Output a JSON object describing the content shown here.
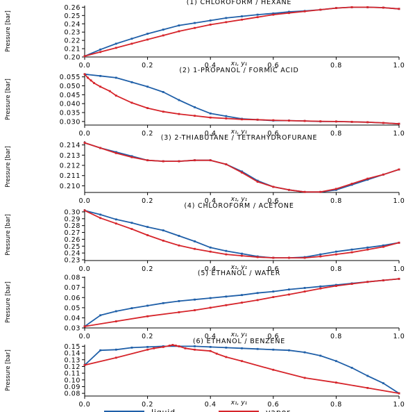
{
  "figure": {
    "legend": {
      "liquid_label": "liquid",
      "vapor_label": "vapor",
      "placement": "bottom-center"
    }
  },
  "colors": {
    "liquid": "#1f5fa8",
    "vapor": "#d6242a"
  },
  "chart_data": [
    {
      "type": "line",
      "title": "(1) CHLOROFORM / HEXANE",
      "xlabel": "x₁, y₁",
      "ylabel": "Pressure [bar]",
      "xlim": [
        0,
        1
      ],
      "ylim": [
        0.2,
        0.262
      ],
      "xticks": [
        "0.0",
        "0.2",
        "0.4",
        "0.6",
        "0.8",
        "1.0"
      ],
      "yticks": [
        0.2,
        0.21,
        0.22,
        0.23,
        0.24,
        0.25,
        0.26
      ],
      "ytick_labels": [
        "0.20",
        "0.21",
        "0.22",
        "0.23",
        "0.24",
        "0.25",
        "0.26"
      ],
      "series": [
        {
          "name": "liquid",
          "x": [
            0,
            0.05,
            0.1,
            0.15,
            0.2,
            0.25,
            0.3,
            0.35,
            0.4,
            0.45,
            0.5,
            0.55,
            0.6,
            0.65,
            0.7,
            0.75,
            0.8,
            0.85,
            0.9,
            0.95,
            1.0
          ],
          "y": [
            0.201,
            0.209,
            0.216,
            0.222,
            0.228,
            0.233,
            0.238,
            0.241,
            0.244,
            0.247,
            0.249,
            0.251,
            0.2525,
            0.2545,
            0.2555,
            0.257,
            0.259,
            0.26,
            0.26,
            0.2595,
            0.258
          ]
        },
        {
          "name": "vapor",
          "x": [
            0,
            0.05,
            0.1,
            0.15,
            0.2,
            0.25,
            0.3,
            0.35,
            0.4,
            0.45,
            0.5,
            0.55,
            0.6,
            0.65,
            0.7,
            0.75,
            0.8,
            0.85,
            0.9,
            0.95,
            1.0
          ],
          "y": [
            0.201,
            0.206,
            0.211,
            0.216,
            0.221,
            0.226,
            0.231,
            0.235,
            0.239,
            0.242,
            0.245,
            0.248,
            0.251,
            0.253,
            0.255,
            0.257,
            0.259,
            0.26,
            0.26,
            0.2595,
            0.258
          ]
        }
      ]
    },
    {
      "type": "line",
      "title": "(2) 1-PROPANOL / FORMIC ACID",
      "xlabel": "x₁, y₁",
      "ylabel": "Pressure [bar]",
      "xlim": [
        0,
        1
      ],
      "ylim": [
        0.028,
        0.0568
      ],
      "xticks": [
        "0.0",
        "0.2",
        "0.4",
        "0.6",
        "0.8",
        "1.0"
      ],
      "yticks": [
        0.03,
        0.035,
        0.04,
        0.045,
        0.05,
        0.055
      ],
      "ytick_labels": [
        "0.030",
        "0.035",
        "0.040",
        "0.045",
        "0.050",
        "0.055"
      ],
      "series": [
        {
          "name": "liquid",
          "x": [
            0,
            0.05,
            0.1,
            0.15,
            0.2,
            0.25,
            0.3,
            0.35,
            0.4,
            0.45,
            0.5,
            0.55,
            0.6,
            0.65,
            0.7,
            0.75,
            0.8,
            0.85,
            0.9,
            0.95,
            1.0
          ],
          "y": [
            0.0565,
            0.0555,
            0.0545,
            0.052,
            0.0495,
            0.0465,
            0.042,
            0.038,
            0.0345,
            0.033,
            0.0315,
            0.031,
            0.0305,
            0.0305,
            0.0303,
            0.03,
            0.03,
            0.0298,
            0.0296,
            0.0292,
            0.0287
          ]
        },
        {
          "name": "vapor",
          "x": [
            0,
            0.01,
            0.02,
            0.03,
            0.05,
            0.08,
            0.1,
            0.15,
            0.2,
            0.25,
            0.3,
            0.35,
            0.4,
            0.45,
            0.5,
            0.55,
            0.6,
            0.65,
            0.7,
            0.75,
            0.8,
            0.85,
            0.9,
            0.95,
            1.0
          ],
          "y": [
            0.0565,
            0.0545,
            0.053,
            0.0515,
            0.0495,
            0.047,
            0.0445,
            0.0405,
            0.0375,
            0.0355,
            0.0342,
            0.0332,
            0.0322,
            0.0317,
            0.0312,
            0.031,
            0.0307,
            0.0305,
            0.0303,
            0.0301,
            0.03,
            0.0298,
            0.0296,
            0.0292,
            0.0287
          ]
        }
      ]
    },
    {
      "type": "line",
      "title": "(3) 2-THIABUTANE / TETRAHYDROFURANE",
      "xlabel": "x₁, y₁",
      "ylabel": "Pressure [bar]",
      "xlim": [
        0,
        1
      ],
      "ylim": [
        0.20935,
        0.21438
      ],
      "xticks": [
        "0.0",
        "0.2",
        "0.4",
        "0.6",
        "0.8",
        "1.0"
      ],
      "yticks": [
        0.21,
        0.211,
        0.212,
        0.213,
        0.214
      ],
      "ytick_labels": [
        "0.210",
        "0.211",
        "0.212",
        "0.213",
        "0.214"
      ],
      "series": [
        {
          "name": "liquid",
          "x": [
            0,
            0.05,
            0.1,
            0.15,
            0.2,
            0.25,
            0.3,
            0.35,
            0.4,
            0.45,
            0.5,
            0.55,
            0.6,
            0.65,
            0.7,
            0.75,
            0.8,
            0.85,
            0.9,
            0.95,
            1.0
          ],
          "y": [
            0.2142,
            0.2137,
            0.2133,
            0.2129,
            0.2125,
            0.2124,
            0.2124,
            0.2125,
            0.2125,
            0.2121,
            0.2114,
            0.2105,
            0.2099,
            0.2096,
            0.2094,
            0.2094,
            0.2096,
            0.2101,
            0.2106,
            0.2111,
            0.2116
          ]
        },
        {
          "name": "vapor",
          "x": [
            0,
            0.05,
            0.1,
            0.15,
            0.2,
            0.25,
            0.3,
            0.35,
            0.4,
            0.45,
            0.5,
            0.55,
            0.6,
            0.65,
            0.7,
            0.75,
            0.8,
            0.85,
            0.9,
            0.95,
            1.0
          ],
          "y": [
            0.2142,
            0.2137,
            0.2132,
            0.2128,
            0.2125,
            0.2124,
            0.2124,
            0.2125,
            0.2125,
            0.2121,
            0.2113,
            0.2104,
            0.2099,
            0.2096,
            0.2094,
            0.2094,
            0.2097,
            0.2102,
            0.2107,
            0.2111,
            0.2116
          ]
        }
      ]
    },
    {
      "type": "line",
      "title": "(4) CHLOROFORM / ACETONE",
      "xlabel": "x₁, y₁",
      "ylabel": "Pressure [bar]",
      "xlim": [
        0,
        1
      ],
      "ylim": [
        0.229,
        0.304
      ],
      "xticks": [
        "0.0",
        "0.2",
        "0.4",
        "0.6",
        "0.8",
        "1.0"
      ],
      "yticks": [
        0.23,
        0.24,
        0.25,
        0.26,
        0.27,
        0.28,
        0.29,
        0.3
      ],
      "ytick_labels": [
        "0.23",
        "0.24",
        "0.25",
        "0.26",
        "0.27",
        "0.28",
        "0.29",
        "0.30"
      ],
      "series": [
        {
          "name": "liquid",
          "x": [
            0,
            0.05,
            0.1,
            0.15,
            0.2,
            0.25,
            0.3,
            0.35,
            0.4,
            0.45,
            0.5,
            0.55,
            0.6,
            0.65,
            0.7,
            0.75,
            0.8,
            0.85,
            0.9,
            0.95,
            1.0
          ],
          "y": [
            0.302,
            0.296,
            0.289,
            0.284,
            0.278,
            0.273,
            0.265,
            0.257,
            0.248,
            0.243,
            0.239,
            0.235,
            0.233,
            0.233,
            0.234,
            0.238,
            0.242,
            0.245,
            0.248,
            0.251,
            0.255
          ]
        },
        {
          "name": "vapor",
          "x": [
            0,
            0.05,
            0.1,
            0.15,
            0.2,
            0.25,
            0.3,
            0.35,
            0.4,
            0.45,
            0.5,
            0.55,
            0.6,
            0.65,
            0.7,
            0.75,
            0.8,
            0.85,
            0.9,
            0.95,
            1.0
          ],
          "y": [
            0.302,
            0.291,
            0.283,
            0.275,
            0.266,
            0.258,
            0.251,
            0.246,
            0.242,
            0.238,
            0.236,
            0.234,
            0.233,
            0.233,
            0.233,
            0.235,
            0.238,
            0.241,
            0.245,
            0.249,
            0.255
          ]
        }
      ]
    },
    {
      "type": "line",
      "title": "(5) ETHANOL / WATER",
      "xlabel": "x₁, y₁",
      "ylabel": "Pressure [bar]",
      "xlim": [
        0,
        1
      ],
      "ylim": [
        0.03,
        0.0808
      ],
      "xticks": [
        "0.0",
        "0.2",
        "0.4",
        "0.6",
        "0.8",
        "1.0"
      ],
      "yticks": [
        0.03,
        0.04,
        0.05,
        0.06,
        0.07,
        0.08
      ],
      "ytick_labels": [
        "0.03",
        "0.04",
        "0.05",
        "0.06",
        "0.07",
        "0.08"
      ],
      "series": [
        {
          "name": "liquid",
          "x": [
            0,
            0.05,
            0.1,
            0.15,
            0.2,
            0.25,
            0.3,
            0.35,
            0.4,
            0.45,
            0.5,
            0.55,
            0.6,
            0.65,
            0.7,
            0.75,
            0.8,
            0.85,
            0.9,
            0.95,
            1.0
          ],
          "y": [
            0.0315,
            0.0425,
            0.0465,
            0.0495,
            0.052,
            0.0545,
            0.0565,
            0.058,
            0.0595,
            0.061,
            0.0625,
            0.0645,
            0.066,
            0.068,
            0.0695,
            0.071,
            0.0725,
            0.074,
            0.0755,
            0.077,
            0.0785
          ]
        },
        {
          "name": "vapor",
          "x": [
            0,
            0.1,
            0.2,
            0.3,
            0.35,
            0.4,
            0.45,
            0.5,
            0.55,
            0.6,
            0.65,
            0.7,
            0.75,
            0.8,
            0.85,
            0.9,
            0.95,
            1.0
          ],
          "y": [
            0.0315,
            0.0365,
            0.0415,
            0.0455,
            0.0475,
            0.05,
            0.0525,
            0.055,
            0.0575,
            0.0605,
            0.063,
            0.066,
            0.069,
            0.0715,
            0.0735,
            0.0755,
            0.077,
            0.0785
          ]
        }
      ]
    },
    {
      "type": "line",
      "title": "(6) ETHANOL / BENZENE",
      "xlabel": "x₁, y₁",
      "ylabel": "Pressure [bar]",
      "xlim": [
        0,
        1
      ],
      "ylim": [
        0.076,
        0.1525
      ],
      "xticks": [
        "0.0",
        "0.2",
        "0.4",
        "0.6",
        "0.8",
        "1.0"
      ],
      "yticks": [
        0.08,
        0.09,
        0.1,
        0.11,
        0.12,
        0.13,
        0.14,
        0.15
      ],
      "ytick_labels": [
        "0.08",
        "0.09",
        "0.10",
        "0.11",
        "0.12",
        "0.13",
        "0.14",
        "0.15"
      ],
      "series": [
        {
          "name": "liquid",
          "x": [
            0,
            0.05,
            0.1,
            0.15,
            0.2,
            0.25,
            0.3,
            0.35,
            0.4,
            0.45,
            0.5,
            0.55,
            0.6,
            0.65,
            0.7,
            0.75,
            0.8,
            0.85,
            0.9,
            0.95,
            1.0
          ],
          "y": [
            0.122,
            0.144,
            0.145,
            0.148,
            0.149,
            0.15,
            0.15,
            0.15,
            0.149,
            0.148,
            0.147,
            0.146,
            0.145,
            0.144,
            0.141,
            0.136,
            0.128,
            0.118,
            0.106,
            0.095,
            0.08
          ]
        },
        {
          "name": "vapor",
          "x": [
            0,
            0.1,
            0.2,
            0.22,
            0.25,
            0.27,
            0.28,
            0.29,
            0.3,
            0.32,
            0.35,
            0.4,
            0.42,
            0.45,
            0.5,
            0.6,
            0.7,
            0.8,
            0.9,
            1.0
          ],
          "y": [
            0.122,
            0.133,
            0.145,
            0.147,
            0.149,
            0.151,
            0.152,
            0.151,
            0.15,
            0.147,
            0.145,
            0.143,
            0.139,
            0.134,
            0.128,
            0.115,
            0.103,
            0.096,
            0.088,
            0.08
          ]
        }
      ]
    }
  ]
}
